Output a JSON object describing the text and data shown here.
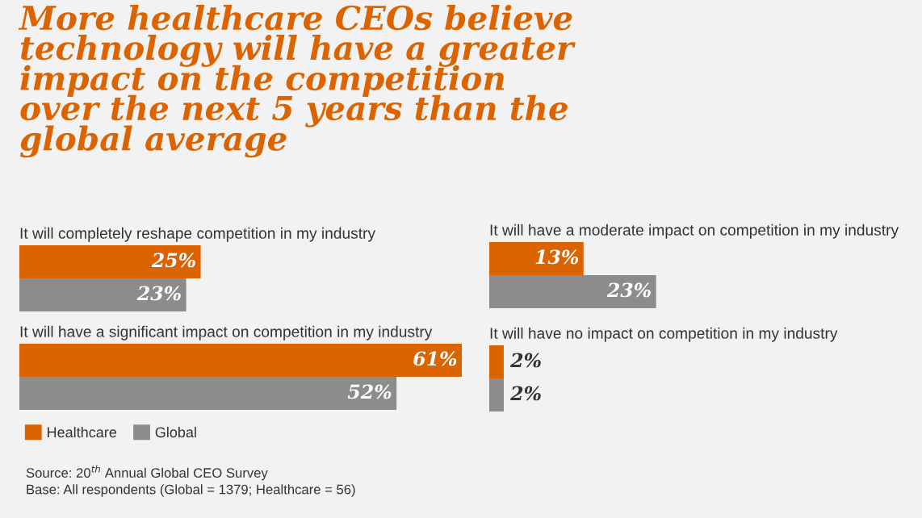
{
  "chart_data": [
    {
      "type": "bar",
      "orientation": "horizontal",
      "title": "More healthcare CEOs believe\ntechnology will have a greater\nimpact on the competition\nover the next 5 years than the\nglobal average",
      "subtitle": "It will completely reshape competition in my industry",
      "categories": [
        null
      ],
      "legend": "bottom left",
      "series": [
        {
          "name": "Healthcare",
          "color": "#dc6400",
          "values": [
            25
          ],
          "value_labels": [
            "25%"
          ]
        },
        {
          "name": "Global",
          "color": "#8c8c8c",
          "values": [
            23
          ],
          "value_labels": [
            "23%"
          ]
        }
      ],
      "annotations": [
        "Source: 20$^{th}$ Annual Global CEO Survey",
        "Base: All respondents (Global = 1379; Healthcare = 56)"
      ]
    },
    {
      "type": "bar",
      "orientation": "horizontal",
      "subtitle": "It will have a significant impact on competition in my industry",
      "categories": [
        null
      ],
      "series": [
        {
          "color": "#dc6400",
          "values": [
            61
          ],
          "value_labels": [
            "61%"
          ]
        },
        {
          "color": "#8c8c8c",
          "values": [
            52
          ],
          "value_labels": [
            "52%"
          ]
        }
      ]
    },
    {
      "type": "bar",
      "orientation": "horizontal",
      "subtitle": "It will have a moderate impact on competition in my industry",
      "categories": [
        null
      ],
      "series": [
        {
          "color": "#dc6400",
          "values": [
            13
          ],
          "value_labels": [
            "13%"
          ]
        },
        {
          "color": "#8c8c8c",
          "values": [
            23
          ],
          "value_labels": [
            "23%"
          ]
        }
      ]
    },
    {
      "type": "bar",
      "orientation": "horizontal",
      "subtitle": "It will have no impact on competition in my industry",
      "categories": [
        null
      ],
      "series": [
        {
          "color": "#dc6400",
          "values": [
            2
          ],
          "value_labels": [
            "2%"
          ]
        },
        {
          "color": "#8c8c8c",
          "values": [
            2
          ],
          "value_labels": [
            "2%"
          ]
        }
      ]
    }
  ]
}
